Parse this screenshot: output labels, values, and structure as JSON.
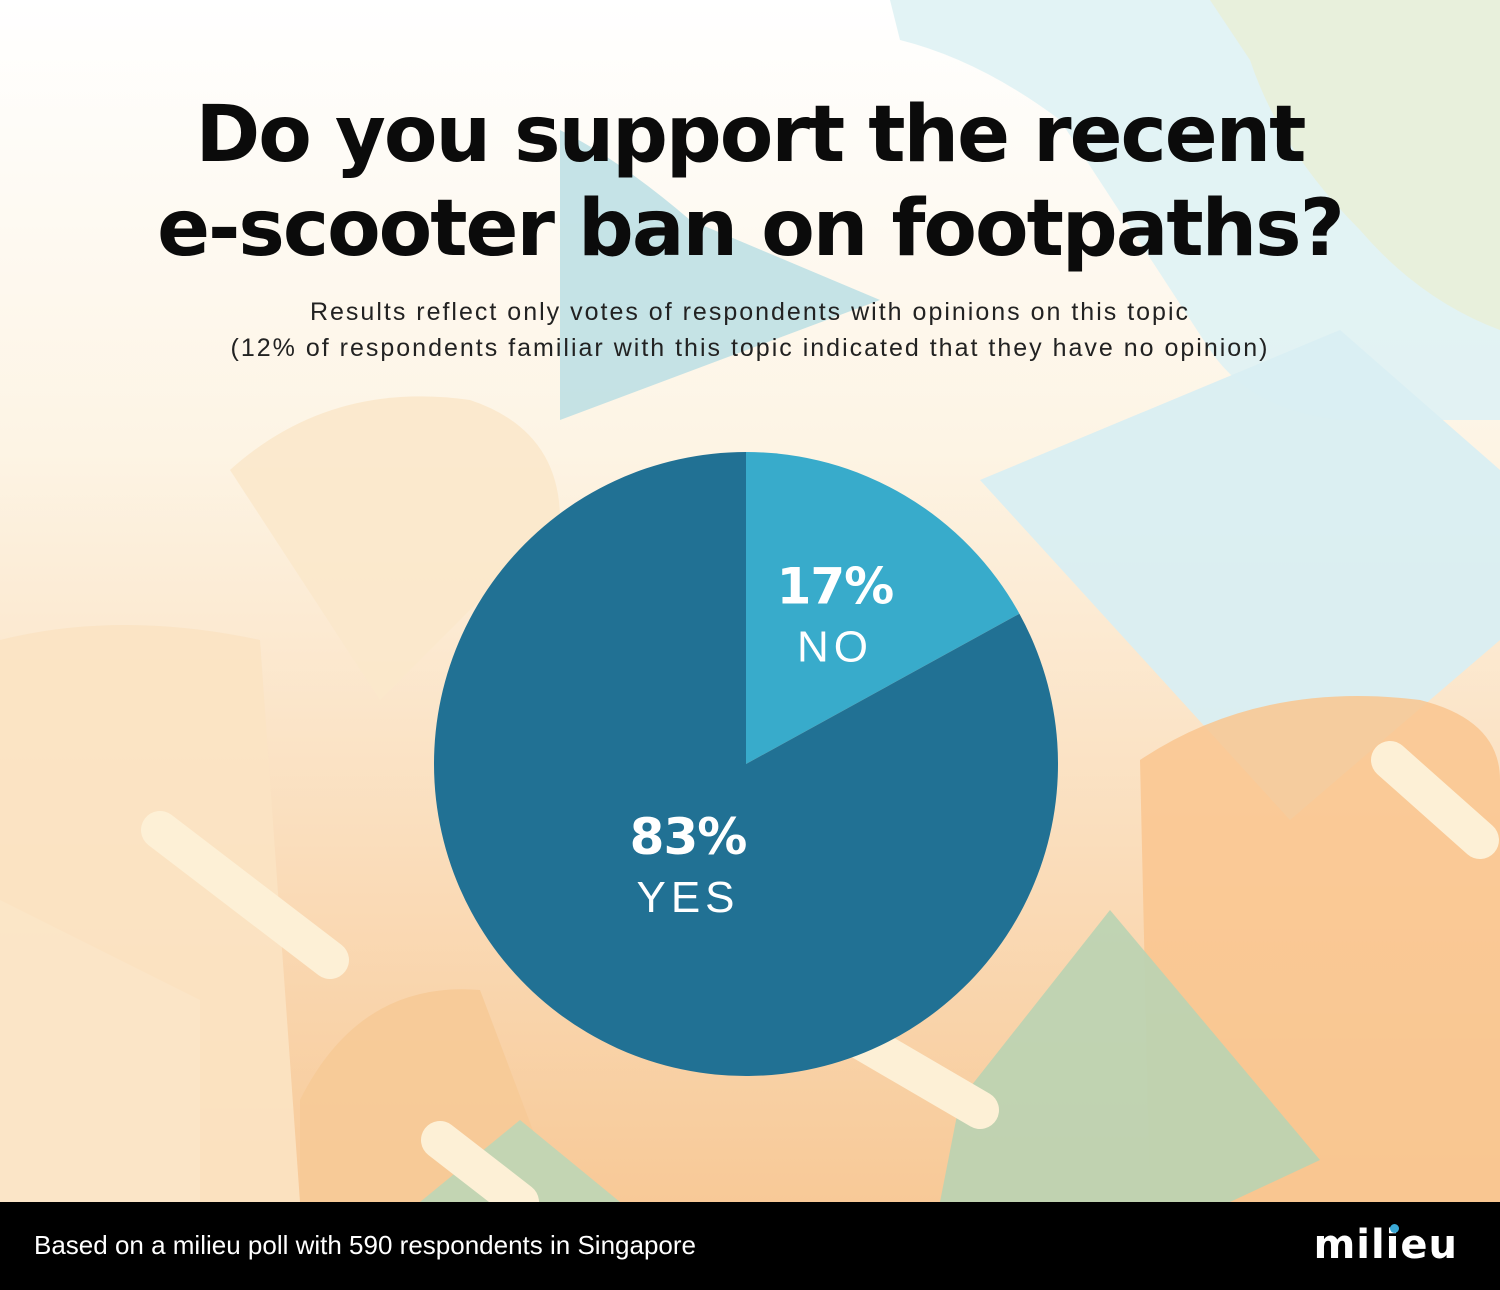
{
  "header": {
    "title_line1": "Do you support the recent",
    "title_line2": "e-scooter ban on footpaths?",
    "subtitle_line1": "Results reflect only votes of respondents with opinions on this topic",
    "subtitle_line2": "(12% of respondents familiar with this topic indicated that they have no opinion)"
  },
  "chart_data": {
    "type": "pie",
    "slices": [
      {
        "label": "NO",
        "value": 17,
        "display": "17%",
        "color": "#38abcb"
      },
      {
        "label": "YES",
        "value": 83,
        "display": "83%",
        "color": "#217194"
      }
    ]
  },
  "footer": {
    "text": "Based on a milieu poll with 590 respondents in Singapore",
    "logo": "milieu"
  },
  "colors": {
    "footer_bg": "#000000",
    "logo_dot": "#3aa9d6"
  }
}
